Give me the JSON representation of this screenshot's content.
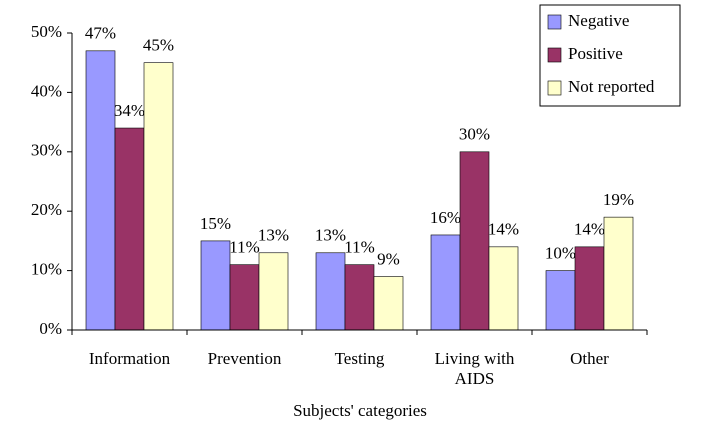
{
  "chart_data": {
    "type": "bar",
    "x_label": "Subjects' categories",
    "categories": [
      "Information",
      "Prevention",
      "Testing",
      "Living with AIDS",
      "Other"
    ],
    "series": [
      {
        "name": "Negative",
        "color": "#9999ff",
        "values": [
          47,
          15,
          13,
          16,
          10
        ],
        "value_labels": [
          "47%",
          "15%",
          "13%",
          "16%",
          "10%"
        ]
      },
      {
        "name": "Positive",
        "color": "#993366",
        "values": [
          34,
          11,
          11,
          30,
          14
        ],
        "value_labels": [
          "34%",
          "11%",
          "11%",
          "30%",
          "14%"
        ]
      },
      {
        "name": "Not reported",
        "color": "#ffffcc",
        "values": [
          45,
          13,
          9,
          14,
          19
        ],
        "value_labels": [
          "45%",
          "13%",
          "9%",
          "14%",
          "19%"
        ]
      }
    ],
    "ylim": [
      0,
      50
    ],
    "yticks": [
      {
        "value": 0,
        "label": "0%"
      },
      {
        "value": 10,
        "label": "10%"
      },
      {
        "value": 20,
        "label": "20%"
      },
      {
        "value": 30,
        "label": "30%"
      },
      {
        "value": 40,
        "label": "40%"
      },
      {
        "value": 50,
        "label": "50%"
      }
    ],
    "legend": "upper right",
    "grid": false
  }
}
